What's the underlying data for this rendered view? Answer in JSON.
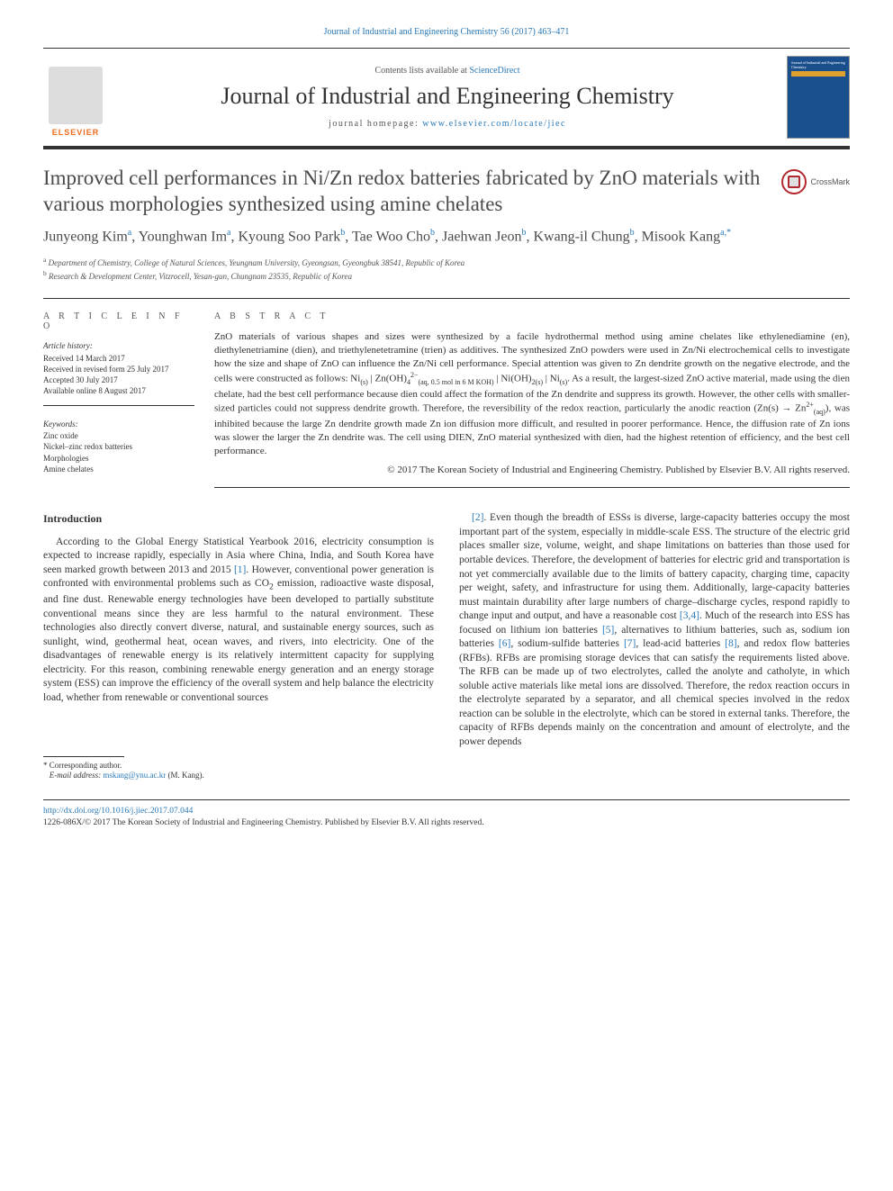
{
  "top_citation": "Journal of Industrial and Engineering Chemistry 56 (2017) 463–471",
  "header": {
    "contents_prefix": "Contents lists available at ",
    "contents_link": "ScienceDirect",
    "journal_name": "Journal of Industrial and Engineering Chemistry",
    "homepage_prefix": "journal homepage: ",
    "homepage_url": "www.elsevier.com/locate/jiec",
    "elsevier_label": "ELSEVIER"
  },
  "crossmark_label": "CrossMark",
  "title": "Improved cell performances in Ni/Zn redox batteries fabricated by ZnO materials with various morphologies synthesized using amine chelates",
  "authors_html": "Junyeong Kim<sup>a</sup>, Younghwan Im<sup>a</sup>, Kyoung Soo Park<sup>b</sup>, Tae Woo Cho<sup>b</sup>, Jaehwan Jeon<sup>b</sup>, Kwang-il Chung<sup>b</sup>, Misook Kang<sup>a,*</sup>",
  "affiliations": [
    {
      "sup": "a",
      "text": "Department of Chemistry, College of Natural Sciences, Yeungnam University, Gyeongsan, Gyeongbuk 38541, Republic of Korea"
    },
    {
      "sup": "b",
      "text": "Research & Development Center, Vitzrocell, Yesan-gun, Chungnam 23535, Republic of Korea"
    }
  ],
  "article_info": {
    "heading": "A R T I C L E  I N F O",
    "history_label": "Article history:",
    "history": [
      "Received 14 March 2017",
      "Received in revised form 25 July 2017",
      "Accepted 30 July 2017",
      "Available online 8 August 2017"
    ],
    "keywords_label": "Keywords:",
    "keywords": [
      "Zinc oxide",
      "Nickel–zinc redox batteries",
      "Morphologies",
      "Amine chelates"
    ]
  },
  "abstract": {
    "heading": "A B S T R A C T",
    "text_html": "ZnO materials of various shapes and sizes were synthesized by a facile hydrothermal method using amine chelates like ethylenediamine (en), diethylenetriamine (dien), and triethylenetetramine (trien) as additives. The synthesized ZnO powders were used in Zn/Ni electrochemical cells to investigate how the size and shape of ZnO can influence the Zn/Ni cell performance. Special attention was given to Zn dendrite growth on the negative electrode, and the cells were constructed as follows: Ni<sub>(s)</sub> | Zn(OH)<sub>4</sub><sup>2−</sup><sub>(aq, 0.5 mol in 6 M KOH)</sub> | Ni(OH)<sub>2(s)</sub> | Ni<sub>(s)</sub>. As a result, the largest-sized ZnO active material, made using the dien chelate, had the best cell performance because dien could affect the formation of the Zn dendrite and suppress its growth. However, the other cells with smaller-sized particles could not suppress dendrite growth. Therefore, the reversibility of the redox reaction, particularly the anodic reaction (Zn(s) → Zn<sup>2+</sup><sub>(aq)</sub>), was inhibited because the large Zn dendrite growth made Zn ion diffusion more difficult, and resulted in poorer performance. Hence, the diffusion rate of Zn ions was slower the larger the Zn dendrite was. The cell using DIEN, ZnO material synthesized with dien, had the highest retention of efficiency, and the best cell performance.",
    "copyright": "© 2017 The Korean Society of Industrial and Engineering Chemistry. Published by Elsevier B.V. All rights reserved."
  },
  "body": {
    "intro_heading": "Introduction",
    "col1_html": "According to the Global Energy Statistical Yearbook 2016, electricity consumption is expected to increase rapidly, especially in Asia where China, India, and South Korea have seen marked growth between 2013 and 2015 <span class=\"ref-link\">[1]</span>. However, conventional power generation is confronted with environmental problems such as CO<sub>2</sub> emission, radioactive waste disposal, and fine dust. Renewable energy technologies have been developed to partially substitute conventional means since they are less harmful to the natural environment. These technologies also directly convert diverse, natural, and sustainable energy sources, such as sunlight, wind, geothermal heat, ocean waves, and rivers, into electricity. One of the disadvantages of renewable energy is its relatively intermittent capacity for supplying electricity. For this reason, combining renewable energy generation and an energy storage system (ESS) can improve the efficiency of the overall system and help balance the electricity load, whether from renewable or conventional sources",
    "col2_html": "<span class=\"ref-link\">[2]</span>. Even though the breadth of ESSs is diverse, large-capacity batteries occupy the most important part of the system, especially in middle-scale ESS. The structure of the electric grid places smaller size, volume, weight, and shape limitations on batteries than those used for portable devices. Therefore, the development of batteries for electric grid and transportation is not yet commercially available due to the limits of battery capacity, charging time, capacity per weight, safety, and infrastructure for using them. Additionally, large-capacity batteries must maintain durability after large numbers of charge–discharge cycles, respond rapidly to change input and output, and have a reasonable cost <span class=\"ref-link\">[3,4]</span>. Much of the research into ESS has focused on lithium ion batteries <span class=\"ref-link\">[5]</span>, alternatives to lithium batteries, such as, sodium ion batteries <span class=\"ref-link\">[6]</span>, sodium-sulfide batteries <span class=\"ref-link\">[7]</span>, lead-acid batteries <span class=\"ref-link\">[8]</span>, and redox flow batteries (RFBs). RFBs are promising storage devices that can satisfy the requirements listed above. The RFB can be made up of two electrolytes, called the anolyte and catholyte, in which soluble active materials like metal ions are dissolved. Therefore, the redox reaction occurs in the electrolyte separated by a separator, and all chemical species involved in the redox reaction can be soluble in the electrolyte, which can be stored in external tanks. Therefore, the capacity of RFBs depends mainly on the concentration and amount of electrolyte, and the power depends"
  },
  "corresponding": {
    "label": "* Corresponding author.",
    "email_label": "E-mail address:",
    "email": "mskang@ynu.ac.kr",
    "name_suffix": "(M. Kang)."
  },
  "footer": {
    "doi": "http://dx.doi.org/10.1016/j.jiec.2017.07.044",
    "issn_line": "1226-086X/© 2017 The Korean Society of Industrial and Engineering Chemistry. Published by Elsevier B.V. All rights reserved."
  }
}
